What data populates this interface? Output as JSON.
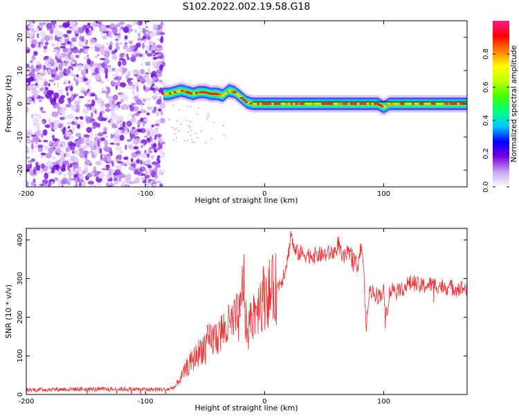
{
  "page": {
    "title": "S102.2022.002.19.58.G18"
  },
  "chart_data": [
    {
      "type": "heatmap",
      "xlabel": "Height of straight line (km)",
      "ylabel": "Frequency (Hz)",
      "xlim": [
        -200,
        170
      ],
      "ylim": [
        -25,
        25
      ],
      "xticks": [
        -200,
        -100,
        0,
        100
      ],
      "xtick_labels": [
        "-200",
        "-100",
        "0",
        "100"
      ],
      "yticks": [
        -20,
        -10,
        0,
        10,
        20
      ],
      "ytick_labels": [
        "-20",
        "-10",
        "0",
        "10",
        "20"
      ],
      "grid": false,
      "noise_region_x": [
        -200,
        -85
      ],
      "signal_track": {
        "x": [
          -85,
          -80,
          -75,
          -70,
          -65,
          -60,
          -55,
          -50,
          -45,
          -40,
          -35,
          -30,
          -25,
          -20,
          -15,
          -10,
          -5,
          0,
          10,
          20,
          40,
          60,
          80,
          95,
          100,
          105,
          120,
          140,
          170
        ],
        "y": [
          3,
          3,
          3.5,
          4,
          3.5,
          3,
          3.5,
          3.5,
          3,
          3,
          2.5,
          4,
          3.5,
          2,
          0.5,
          0,
          0,
          0,
          0,
          0,
          0,
          0,
          0,
          0,
          -1,
          0,
          0,
          0,
          0
        ]
      },
      "colorbar": {
        "label": "Normalized spectral amplitude",
        "range": [
          0,
          1
        ],
        "ticks": [
          0.0,
          0.2,
          0.4,
          0.6,
          0.8
        ],
        "tick_labels": [
          "0.0",
          "0.2",
          "0.4",
          "0.6",
          "0.8"
        ],
        "colormap": [
          "#ffffff",
          "#c8a0f0",
          "#7a00e0",
          "#0000ff",
          "#00c8ff",
          "#00ff80",
          "#40ff00",
          "#c0ff00",
          "#ffff00",
          "#ff8000",
          "#ff0000",
          "#ff1a8c"
        ]
      }
    },
    {
      "type": "line",
      "xlabel": "Height of straight line (km)",
      "ylabel": "SNR (10 * v/v)",
      "xlim": [
        -200,
        170
      ],
      "ylim": [
        0,
        430
      ],
      "xticks": [
        -200,
        -100,
        0,
        100
      ],
      "xtick_labels": [
        "-200",
        "-100",
        "0",
        "100"
      ],
      "yticks": [
        0,
        100,
        200,
        300,
        400
      ],
      "ytick_labels": [
        "0",
        "100",
        "200",
        "300",
        "400"
      ],
      "grid": false,
      "series": [
        {
          "color": "#ee3030",
          "x": [
            -200,
            -180,
            -160,
            -140,
            -120,
            -100,
            -90,
            -80,
            -75,
            -70,
            -65,
            -60,
            -55,
            -50,
            -45,
            -40,
            -35,
            -30,
            -25,
            -20,
            -18,
            -15,
            -10,
            -5,
            0,
            5,
            10,
            15,
            20,
            22,
            25,
            30,
            40,
            50,
            60,
            62,
            65,
            70,
            75,
            78,
            80,
            82,
            84,
            85,
            88,
            90,
            95,
            100,
            102,
            105,
            110,
            115,
            120,
            125,
            130,
            140,
            150,
            160,
            170
          ],
          "y": [
            12,
            13,
            14,
            13,
            14,
            13,
            13,
            14,
            20,
            45,
            70,
            90,
            110,
            130,
            140,
            150,
            165,
            175,
            190,
            205,
            320,
            150,
            210,
            240,
            255,
            265,
            275,
            300,
            360,
            420,
            370,
            365,
            360,
            362,
            370,
            395,
            350,
            365,
            355,
            330,
            370,
            380,
            270,
            165,
            265,
            270,
            255,
            265,
            205,
            265,
            280,
            270,
            285,
            290,
            280,
            285,
            280,
            275,
            275
          ]
        }
      ]
    }
  ]
}
